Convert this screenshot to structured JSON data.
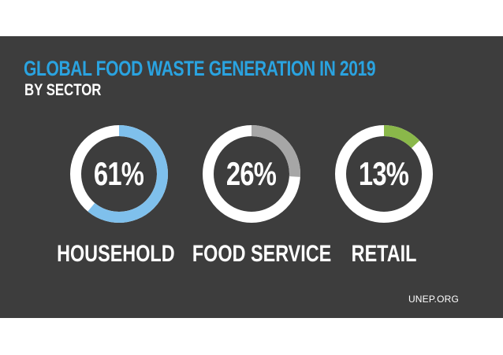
{
  "chart_data": {
    "type": "pie",
    "title": "GLOBAL FOOD WASTE GENERATION IN 2019",
    "subtitle": "BY SECTOR",
    "series": [
      {
        "name": "HOUSEHOLD",
        "value": 61,
        "label": "61%",
        "color": "#7fc0ec"
      },
      {
        "name": "FOOD SERVICE",
        "value": 26,
        "label": "26%",
        "color": "#a6a6a6"
      },
      {
        "name": "RETAIL",
        "value": 13,
        "label": "13%",
        "color": "#8ab84a"
      }
    ],
    "ring_track_color": "#ffffff",
    "source": "UNEP.ORG"
  },
  "colors": {
    "background": "#3d3d3d",
    "title": "#2aa3e0",
    "text": "#ffffff"
  }
}
